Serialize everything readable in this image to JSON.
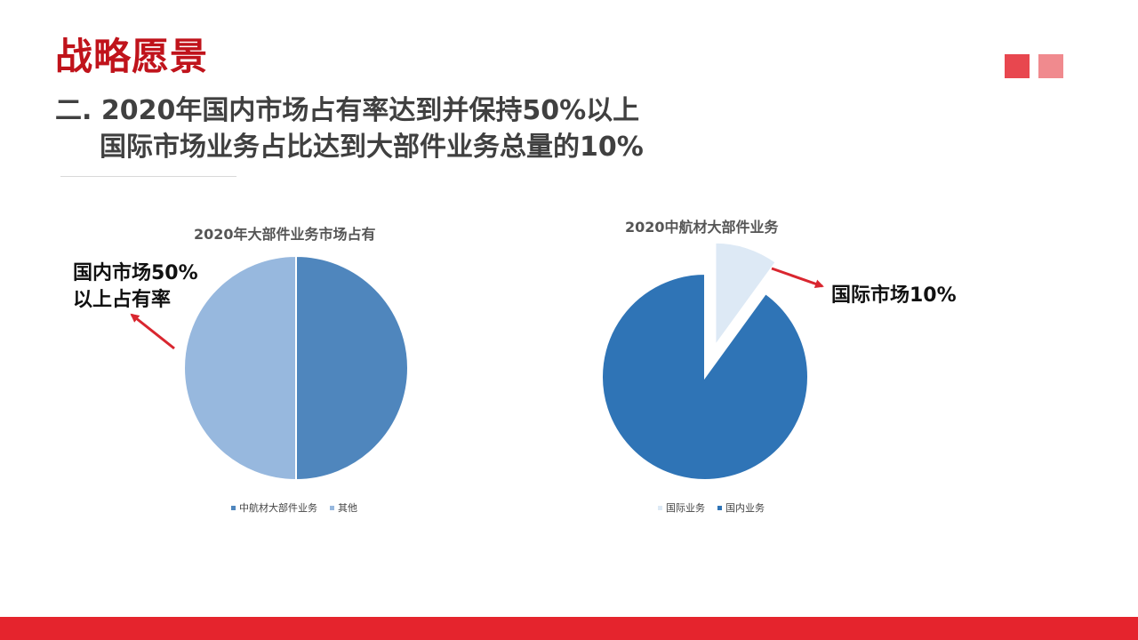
{
  "slide": {
    "title": "战略愿景",
    "subtitle_line1": "二. 2020年国内市场占有率达到并保持50%以上",
    "subtitle_line2": "国际市场业务占比达到大部件业务总量的10%"
  },
  "colors": {
    "title_red": "#c0131b",
    "accent_square_1": "#e8474f",
    "accent_square_2": "#f08a8e",
    "footer_red": "#e5242d",
    "arrow_red": "#d9262f"
  },
  "callouts": {
    "left_line1": "国内市场50%",
    "left_line2": "以上占有率",
    "right": "国际市场10%"
  },
  "chart_data": [
    {
      "type": "pie",
      "title": "2020年大部件业务市场占有",
      "series": [
        {
          "name": "中航材大部件业务",
          "value": 50,
          "color": "#4f86bd"
        },
        {
          "name": "其他",
          "value": 50,
          "color": "#97b8de"
        }
      ],
      "legend_position": "bottom"
    },
    {
      "type": "pie",
      "title": "2020中航材大部件业务",
      "series": [
        {
          "name": "国际业务",
          "value": 10,
          "color": "#dde9f5",
          "exploded": true
        },
        {
          "name": "国内业务",
          "value": 90,
          "color": "#2f74b6"
        }
      ],
      "legend_position": "bottom"
    }
  ]
}
